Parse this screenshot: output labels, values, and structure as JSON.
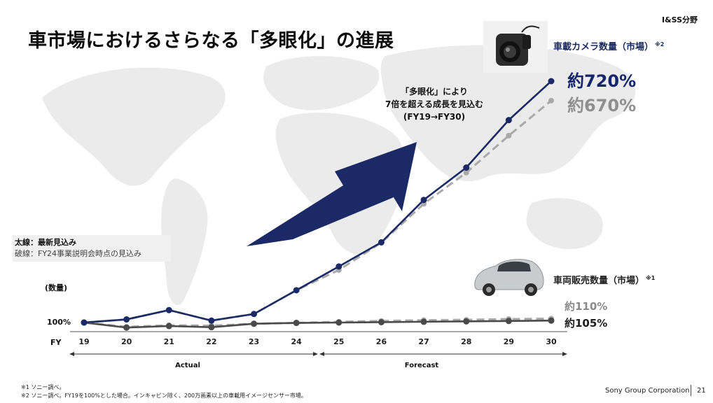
{
  "header": {
    "title": "車市場におけるさらなる「多眼化」の進展",
    "division": "I&SS分野"
  },
  "colors": {
    "camera_new": "#1b2a66",
    "camera_old": "#a9a9a9",
    "car_new": "#4a4a4a",
    "car_old": "#a9a9a9",
    "arrow": "#1b2a66"
  },
  "callout": {
    "line1": "「多眼化」により",
    "line2": "7倍を超える成長を見込む",
    "line3": "(FY19→FY30)"
  },
  "legend": {
    "solid": "太線：最新見込み",
    "dashed": "破線：FY24事業説明会時点の見込み"
  },
  "annotations": {
    "camera_label": "車載カメラ数量（市場）",
    "camera_note": "※2",
    "car_label": "車両販売数量（市場）",
    "car_note": "※1",
    "camera_end_new": "約720%",
    "camera_end_old": "約670%",
    "car_end_old": "約110%",
    "car_end_new": "約105%",
    "y_unit": "(数量)",
    "baseline": "100%",
    "fy": "FY"
  },
  "periods": {
    "actual": "Actual",
    "forecast": "Forecast"
  },
  "chart_data": {
    "type": "line",
    "x": [
      "19",
      "20",
      "21",
      "22",
      "23",
      "24",
      "25",
      "26",
      "27",
      "28",
      "29",
      "30"
    ],
    "ylim": [
      95,
      740
    ],
    "grid": false,
    "legend": "left",
    "series": [
      {
        "key": "camera_new",
        "style": "solid",
        "values": [
          100,
          108,
          132,
          105,
          122,
          183,
          244,
          306,
          415,
          498,
          620,
          720
        ]
      },
      {
        "key": "camera_old",
        "style": "dashed",
        "values": [
          100,
          108,
          132,
          105,
          122,
          183,
          235,
          305,
          405,
          485,
          580,
          670
        ]
      },
      {
        "key": "car_old",
        "style": "dashed",
        "values": [
          100,
          89,
          93,
          92,
          97,
          99,
          102,
          104,
          106,
          107,
          109,
          110
        ]
      },
      {
        "key": "car_new",
        "style": "solid",
        "values": [
          100,
          87,
          91,
          88,
          97,
          99,
          100,
          101,
          102,
          103,
          104,
          105
        ]
      }
    ]
  },
  "footer": {
    "note1": "※1 ソニー調べ。",
    "note2": "※2 ソニー調べ。FY19を100%とした場合。インキャビン除く、200万画素以上の車載用イメージセンサー市場。",
    "company": "Sony Group Corporation",
    "page": "21"
  }
}
